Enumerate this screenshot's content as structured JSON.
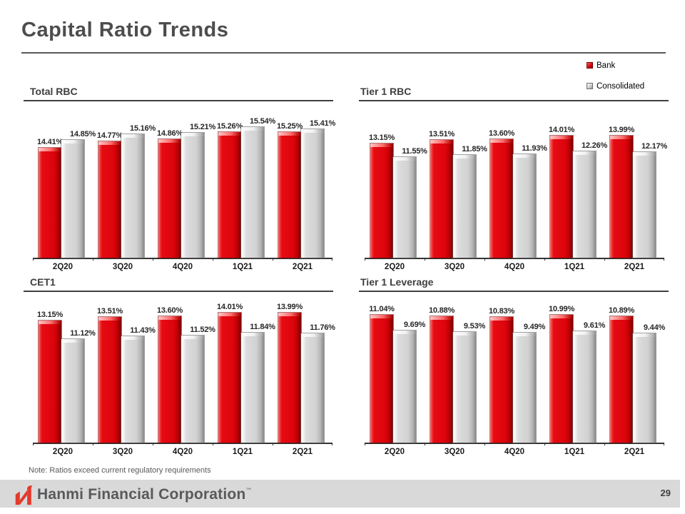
{
  "header": {
    "title": "Capital Ratio Trends"
  },
  "legend": {
    "items": [
      {
        "label": "Bank",
        "color": "#e2061a"
      },
      {
        "label": "Consolidated",
        "color": "#d9d9d9"
      }
    ]
  },
  "chart_data": [
    {
      "type": "bar",
      "title": "Total RBC",
      "categories": [
        "2Q20",
        "3Q20",
        "4Q20",
        "1Q21",
        "2Q21"
      ],
      "series": [
        {
          "name": "Bank",
          "color": "#e2061a",
          "values": [
            14.41,
            14.77,
            14.86,
            15.26,
            15.25
          ]
        },
        {
          "name": "Consolidated",
          "color": "#d9d9d9",
          "values": [
            14.85,
            15.16,
            15.21,
            15.54,
            15.41
          ]
        }
      ],
      "unit": "%",
      "value_label_format": "0.00%",
      "ylim": [
        8.4,
        16.0
      ],
      "grid": false,
      "legend_position": "shared-top-right"
    },
    {
      "type": "bar",
      "title": "Tier 1 RBC",
      "categories": [
        "2Q20",
        "3Q20",
        "4Q20",
        "1Q21",
        "2Q21"
      ],
      "series": [
        {
          "name": "Bank",
          "color": "#e2061a",
          "values": [
            13.15,
            13.51,
            13.6,
            14.01,
            13.99
          ]
        },
        {
          "name": "Consolidated",
          "color": "#d9d9d9",
          "values": [
            11.55,
            11.85,
            11.93,
            12.26,
            12.17
          ]
        }
      ],
      "unit": "%",
      "value_label_format": "0.00%",
      "ylim": [
        0,
        16.0
      ],
      "grid": false,
      "legend_position": "shared-top-right"
    },
    {
      "type": "bar",
      "title": "CET1",
      "categories": [
        "2Q20",
        "3Q20",
        "4Q20",
        "1Q21",
        "2Q21"
      ],
      "series": [
        {
          "name": "Bank",
          "color": "#e2061a",
          "values": [
            13.15,
            13.51,
            13.6,
            14.01,
            13.99
          ]
        },
        {
          "name": "Consolidated",
          "color": "#d9d9d9",
          "values": [
            11.12,
            11.43,
            11.52,
            11.84,
            11.76
          ]
        }
      ],
      "unit": "%",
      "value_label_format": "0.00%",
      "ylim": [
        0,
        15.0
      ],
      "grid": false,
      "legend_position": "shared-top-right"
    },
    {
      "type": "bar",
      "title": "Tier 1 Leverage",
      "categories": [
        "2Q20",
        "3Q20",
        "4Q20",
        "1Q21",
        "2Q21"
      ],
      "series": [
        {
          "name": "Bank",
          "color": "#e2061a",
          "values": [
            11.04,
            10.88,
            10.83,
            10.99,
            10.89
          ]
        },
        {
          "name": "Consolidated",
          "color": "#d9d9d9",
          "values": [
            9.69,
            9.53,
            9.49,
            9.61,
            9.44
          ]
        }
      ],
      "unit": "%",
      "value_label_format": "0.00%",
      "ylim": [
        0,
        12.0
      ],
      "grid": false,
      "legend_position": "shared-top-right"
    }
  ],
  "note": "Note: Ratios exceed current regulatory requirements",
  "footer": {
    "brand": "Hanmi Financial Corporation",
    "trademark_mark": "™",
    "page_number": "29",
    "bar_color": "#d9d9d9",
    "logo_color": "#e23b2e"
  }
}
